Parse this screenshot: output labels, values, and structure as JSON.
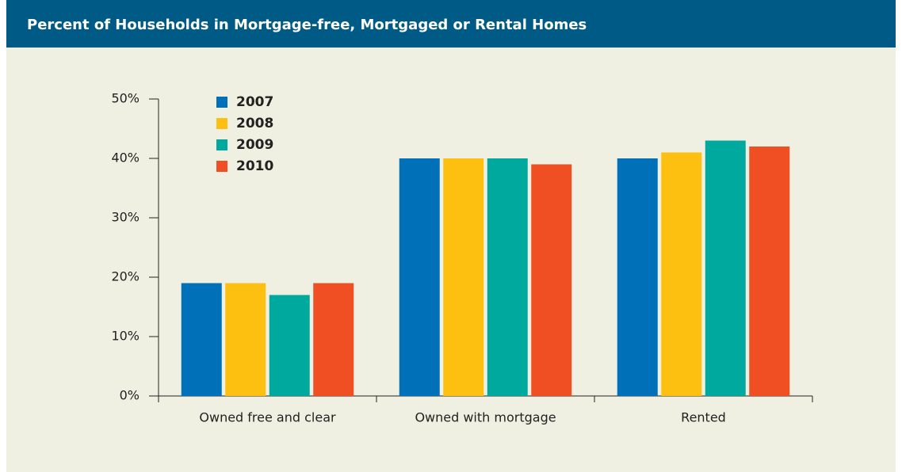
{
  "chart_data": {
    "type": "bar",
    "title": "Percent of Households in Mortgage-free, Mortgaged or Rental Homes",
    "categories": [
      "Owned free and clear",
      "Owned with mortgage",
      "Rented"
    ],
    "series": [
      {
        "name": "2007",
        "color": "#0070b9",
        "values": [
          19,
          40,
          40
        ]
      },
      {
        "name": "2008",
        "color": "#fdc010",
        "values": [
          19,
          40,
          41
        ]
      },
      {
        "name": "2009",
        "color": "#00a99d",
        "values": [
          17,
          40,
          43
        ]
      },
      {
        "name": "2010",
        "color": "#f04e23",
        "values": [
          19,
          39,
          42
        ]
      }
    ],
    "ylim": [
      0,
      50
    ],
    "yticks": [
      {
        "value": 0,
        "label": "0%"
      },
      {
        "value": 10,
        "label": "10%"
      },
      {
        "value": 20,
        "label": "20%"
      },
      {
        "value": 30,
        "label": "30%"
      },
      {
        "value": 40,
        "label": "40%"
      },
      {
        "value": 50,
        "label": "50%"
      }
    ],
    "legend": "upper left"
  }
}
